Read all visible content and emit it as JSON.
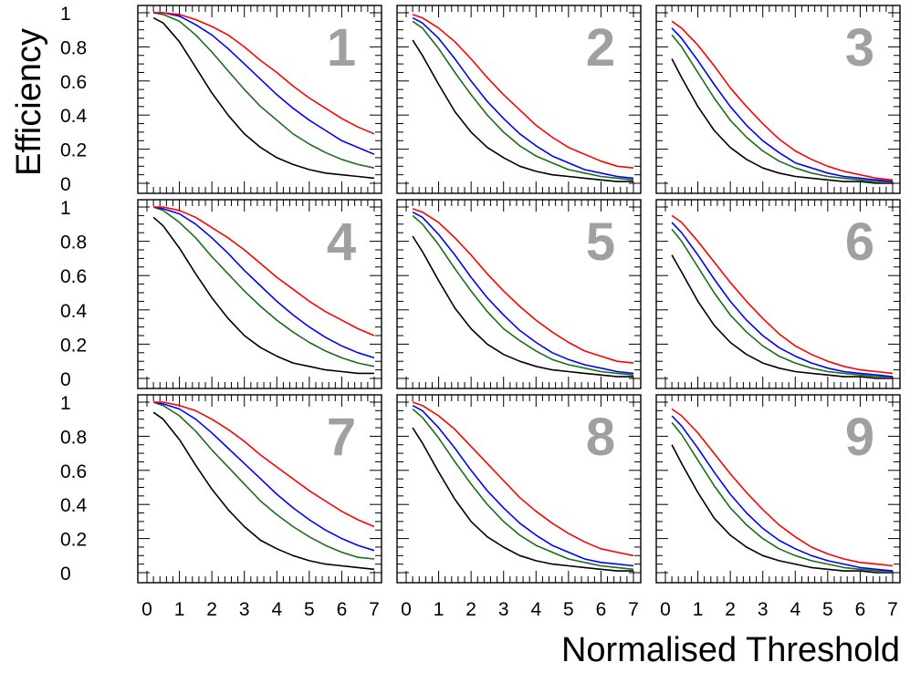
{
  "chart_data": {
    "type": "line",
    "layout": "3x3 grid of panels",
    "xlabel": "Normalised Threshold",
    "ylabel": "Efficiency",
    "xlim": [
      0,
      7
    ],
    "ylim": [
      0,
      1
    ],
    "xticks": [
      "0",
      "1",
      "2",
      "3",
      "4",
      "5",
      "6",
      "7"
    ],
    "yticks": [
      "0",
      "0.2",
      "0.4",
      "0.6",
      "0.8",
      "1"
    ],
    "grid": false,
    "legend": "none",
    "series_colors": [
      "#000000",
      "#1a6e1a",
      "#0000ff",
      "#ff0000"
    ],
    "label_color": "#a0a0a0",
    "x": [
      0.2,
      0.5,
      1,
      1.5,
      2,
      2.5,
      3,
      3.5,
      4,
      4.5,
      5,
      5.5,
      6,
      6.5,
      7
    ],
    "panels": [
      {
        "label": "1",
        "series": [
          {
            "name": "black",
            "color": "#000000",
            "values": [
              0.97,
              0.94,
              0.83,
              0.68,
              0.53,
              0.4,
              0.29,
              0.21,
              0.15,
              0.11,
              0.08,
              0.06,
              0.05,
              0.04,
              0.03
            ]
          },
          {
            "name": "green",
            "color": "#1a6e1a",
            "values": [
              1.0,
              0.99,
              0.95,
              0.87,
              0.77,
              0.66,
              0.55,
              0.45,
              0.37,
              0.29,
              0.23,
              0.18,
              0.14,
              0.11,
              0.09
            ]
          },
          {
            "name": "blue",
            "color": "#0000ff",
            "values": [
              1.0,
              1.0,
              0.98,
              0.93,
              0.87,
              0.79,
              0.7,
              0.61,
              0.52,
              0.44,
              0.37,
              0.31,
              0.25,
              0.21,
              0.17
            ]
          },
          {
            "name": "red",
            "color": "#ff0000",
            "values": [
              1.0,
              1.0,
              0.99,
              0.96,
              0.92,
              0.87,
              0.8,
              0.72,
              0.65,
              0.57,
              0.5,
              0.44,
              0.38,
              0.33,
              0.29
            ]
          }
        ]
      },
      {
        "label": "2",
        "series": [
          {
            "name": "black",
            "color": "#000000",
            "values": [
              0.84,
              0.75,
              0.58,
              0.42,
              0.3,
              0.21,
              0.15,
              0.1,
              0.07,
              0.05,
              0.04,
              0.03,
              0.02,
              0.01,
              0.01
            ]
          },
          {
            "name": "green",
            "color": "#1a6e1a",
            "values": [
              0.95,
              0.91,
              0.79,
              0.65,
              0.52,
              0.4,
              0.3,
              0.22,
              0.16,
              0.12,
              0.08,
              0.06,
              0.04,
              0.03,
              0.02
            ]
          },
          {
            "name": "blue",
            "color": "#0000ff",
            "values": [
              0.97,
              0.94,
              0.85,
              0.73,
              0.6,
              0.48,
              0.38,
              0.29,
              0.22,
              0.16,
              0.12,
              0.08,
              0.06,
              0.04,
              0.03
            ]
          },
          {
            "name": "red",
            "color": "#ff0000",
            "values": [
              0.99,
              0.97,
              0.91,
              0.83,
              0.73,
              0.62,
              0.52,
              0.43,
              0.34,
              0.27,
              0.21,
              0.17,
              0.13,
              0.1,
              0.09
            ]
          }
        ]
      },
      {
        "label": "3",
        "series": [
          {
            "name": "black",
            "color": "#000000",
            "values": [
              0.73,
              0.62,
              0.45,
              0.31,
              0.21,
              0.14,
              0.09,
              0.06,
              0.04,
              0.03,
              0.02,
              0.01,
              0.01,
              0.0,
              0.0
            ]
          },
          {
            "name": "green",
            "color": "#1a6e1a",
            "values": [
              0.87,
              0.8,
              0.65,
              0.5,
              0.37,
              0.27,
              0.19,
              0.13,
              0.09,
              0.06,
              0.04,
              0.03,
              0.02,
              0.01,
              0.01
            ]
          },
          {
            "name": "blue",
            "color": "#0000ff",
            "values": [
              0.91,
              0.85,
              0.72,
              0.58,
              0.45,
              0.34,
              0.25,
              0.18,
              0.12,
              0.09,
              0.06,
              0.04,
              0.03,
              0.02,
              0.01
            ]
          },
          {
            "name": "red",
            "color": "#ff0000",
            "values": [
              0.95,
              0.91,
              0.81,
              0.69,
              0.56,
              0.45,
              0.35,
              0.26,
              0.19,
              0.14,
              0.1,
              0.07,
              0.05,
              0.03,
              0.02
            ]
          }
        ]
      },
      {
        "label": "4",
        "series": [
          {
            "name": "black",
            "color": "#000000",
            "values": [
              0.94,
              0.89,
              0.76,
              0.61,
              0.47,
              0.35,
              0.25,
              0.18,
              0.13,
              0.09,
              0.07,
              0.05,
              0.04,
              0.03,
              0.03
            ]
          },
          {
            "name": "green",
            "color": "#1a6e1a",
            "values": [
              1.0,
              0.98,
              0.91,
              0.82,
              0.71,
              0.61,
              0.51,
              0.42,
              0.34,
              0.27,
              0.21,
              0.16,
              0.12,
              0.09,
              0.07
            ]
          },
          {
            "name": "blue",
            "color": "#0000ff",
            "values": [
              1.0,
              0.99,
              0.96,
              0.9,
              0.82,
              0.73,
              0.63,
              0.54,
              0.45,
              0.37,
              0.3,
              0.24,
              0.19,
              0.15,
              0.12
            ]
          },
          {
            "name": "red",
            "color": "#ff0000",
            "values": [
              1.0,
              1.0,
              0.98,
              0.94,
              0.88,
              0.82,
              0.75,
              0.67,
              0.59,
              0.52,
              0.45,
              0.39,
              0.34,
              0.29,
              0.25
            ]
          }
        ]
      },
      {
        "label": "5",
        "series": [
          {
            "name": "black",
            "color": "#000000",
            "values": [
              0.83,
              0.74,
              0.57,
              0.41,
              0.29,
              0.2,
              0.14,
              0.1,
              0.07,
              0.05,
              0.04,
              0.03,
              0.02,
              0.01,
              0.01
            ]
          },
          {
            "name": "green",
            "color": "#1a6e1a",
            "values": [
              0.95,
              0.9,
              0.78,
              0.64,
              0.51,
              0.39,
              0.29,
              0.22,
              0.16,
              0.11,
              0.08,
              0.06,
              0.04,
              0.03,
              0.02
            ]
          },
          {
            "name": "blue",
            "color": "#0000ff",
            "values": [
              0.97,
              0.94,
              0.84,
              0.72,
              0.59,
              0.47,
              0.37,
              0.28,
              0.21,
              0.15,
              0.11,
              0.08,
              0.06,
              0.04,
              0.03
            ]
          },
          {
            "name": "red",
            "color": "#ff0000",
            "values": [
              0.99,
              0.97,
              0.91,
              0.82,
              0.72,
              0.61,
              0.51,
              0.42,
              0.34,
              0.27,
              0.21,
              0.16,
              0.13,
              0.1,
              0.09
            ]
          }
        ]
      },
      {
        "label": "6",
        "series": [
          {
            "name": "black",
            "color": "#000000",
            "values": [
              0.72,
              0.62,
              0.45,
              0.31,
              0.21,
              0.14,
              0.09,
              0.06,
              0.04,
              0.03,
              0.02,
              0.01,
              0.01,
              0.0,
              0.0
            ]
          },
          {
            "name": "green",
            "color": "#1a6e1a",
            "values": [
              0.87,
              0.8,
              0.65,
              0.5,
              0.37,
              0.27,
              0.19,
              0.13,
              0.09,
              0.06,
              0.04,
              0.03,
              0.02,
              0.01,
              0.01
            ]
          },
          {
            "name": "blue",
            "color": "#0000ff",
            "values": [
              0.91,
              0.85,
              0.72,
              0.58,
              0.45,
              0.34,
              0.25,
              0.18,
              0.13,
              0.09,
              0.06,
              0.04,
              0.03,
              0.02,
              0.01
            ]
          },
          {
            "name": "red",
            "color": "#ff0000",
            "values": [
              0.95,
              0.91,
              0.8,
              0.68,
              0.56,
              0.45,
              0.35,
              0.26,
              0.19,
              0.14,
              0.1,
              0.07,
              0.05,
              0.04,
              0.03
            ]
          }
        ]
      },
      {
        "label": "7",
        "series": [
          {
            "name": "black",
            "color": "#000000",
            "values": [
              0.94,
              0.9,
              0.78,
              0.63,
              0.49,
              0.37,
              0.27,
              0.19,
              0.14,
              0.1,
              0.07,
              0.05,
              0.04,
              0.03,
              0.02
            ]
          },
          {
            "name": "green",
            "color": "#1a6e1a",
            "values": [
              1.0,
              0.98,
              0.92,
              0.83,
              0.72,
              0.62,
              0.52,
              0.42,
              0.34,
              0.27,
              0.21,
              0.16,
              0.12,
              0.09,
              0.08
            ]
          },
          {
            "name": "blue",
            "color": "#0000ff",
            "values": [
              1.0,
              0.99,
              0.96,
              0.9,
              0.82,
              0.73,
              0.64,
              0.55,
              0.46,
              0.38,
              0.31,
              0.25,
              0.2,
              0.16,
              0.13
            ]
          },
          {
            "name": "red",
            "color": "#ff0000",
            "values": [
              1.0,
              1.0,
              0.98,
              0.95,
              0.9,
              0.84,
              0.77,
              0.69,
              0.62,
              0.55,
              0.48,
              0.42,
              0.36,
              0.31,
              0.27
            ]
          }
        ]
      },
      {
        "label": "8",
        "series": [
          {
            "name": "black",
            "color": "#000000",
            "values": [
              0.85,
              0.76,
              0.59,
              0.43,
              0.3,
              0.21,
              0.15,
              0.1,
              0.07,
              0.05,
              0.04,
              0.03,
              0.02,
              0.01,
              0.01
            ]
          },
          {
            "name": "green",
            "color": "#1a6e1a",
            "values": [
              0.96,
              0.91,
              0.79,
              0.65,
              0.52,
              0.4,
              0.3,
              0.22,
              0.16,
              0.12,
              0.08,
              0.06,
              0.04,
              0.03,
              0.02
            ]
          },
          {
            "name": "blue",
            "color": "#0000ff",
            "values": [
              0.98,
              0.95,
              0.85,
              0.73,
              0.6,
              0.48,
              0.38,
              0.29,
              0.22,
              0.16,
              0.12,
              0.08,
              0.06,
              0.05,
              0.04
            ]
          },
          {
            "name": "red",
            "color": "#ff0000",
            "values": [
              1.0,
              0.98,
              0.92,
              0.84,
              0.74,
              0.64,
              0.54,
              0.44,
              0.36,
              0.29,
              0.23,
              0.18,
              0.14,
              0.12,
              0.1
            ]
          }
        ]
      },
      {
        "label": "9",
        "series": [
          {
            "name": "black",
            "color": "#000000",
            "values": [
              0.75,
              0.64,
              0.47,
              0.32,
              0.22,
              0.15,
              0.1,
              0.07,
              0.05,
              0.03,
              0.02,
              0.01,
              0.01,
              0.0,
              0.0
            ]
          },
          {
            "name": "green",
            "color": "#1a6e1a",
            "values": [
              0.88,
              0.81,
              0.66,
              0.51,
              0.38,
              0.28,
              0.2,
              0.14,
              0.1,
              0.07,
              0.05,
              0.03,
              0.02,
              0.01,
              0.01
            ]
          },
          {
            "name": "blue",
            "color": "#0000ff",
            "values": [
              0.92,
              0.86,
              0.73,
              0.59,
              0.46,
              0.35,
              0.26,
              0.19,
              0.14,
              0.1,
              0.07,
              0.05,
              0.03,
              0.02,
              0.01
            ]
          },
          {
            "name": "red",
            "color": "#ff0000",
            "values": [
              0.96,
              0.92,
              0.82,
              0.7,
              0.58,
              0.47,
              0.37,
              0.28,
              0.21,
              0.15,
              0.11,
              0.08,
              0.06,
              0.05,
              0.04
            ]
          }
        ]
      }
    ]
  }
}
